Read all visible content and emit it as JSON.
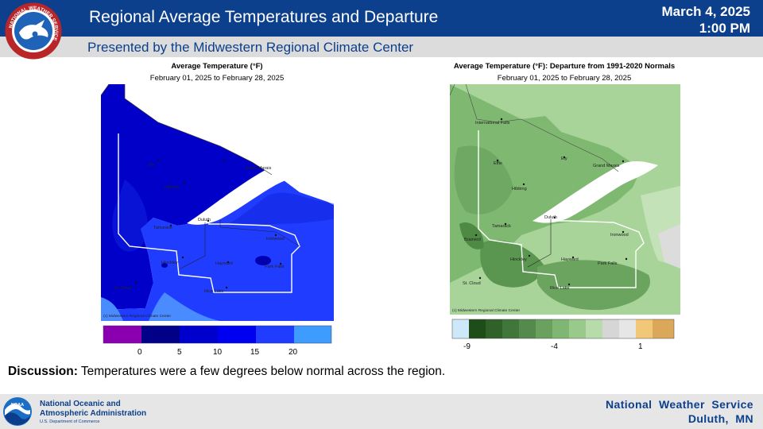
{
  "header": {
    "title": "Regional Average Temperatures and Departure",
    "subtitle": "Presented by the Midwestern Regional Climate Center",
    "date": "March 4, 2025",
    "time": "1:00 PM",
    "logo_icon": "nws-logo",
    "logo_text": "NATIONAL WEATHER SERVICE"
  },
  "colors": {
    "header_blue": "#0c3f8c",
    "temp_dark": "#0000c8",
    "temp_mid": "#1f3cff",
    "temp_light": "#4a8cff",
    "dep_dark_green": "#6fa863",
    "dep_light_green": "#a8d49a"
  },
  "left_map": {
    "title": "Average Temperature (°F)",
    "date_range": "February 01, 2025 to February 28, 2025",
    "credit": "(c) Midwestern Regional Climate Center",
    "labels": [
      "Ely",
      "Grand Marais",
      "Hibbing",
      "Duluth",
      "Tamarack",
      "Ironwood",
      "Hinckley",
      "Hayward",
      "Park Falls",
      "St. Cloud",
      "Rice Lake"
    ],
    "legend_ticks": [
      "0",
      "5",
      "10",
      "15",
      "20"
    ]
  },
  "right_map": {
    "title": "Average Temperature (°F): Departure from 1991-2020 Normals",
    "date_range": "February 01, 2025 to February 28, 2025",
    "credit": "(c) Midwestern Regional Climate Center",
    "labels": [
      "International Falls",
      "Effie",
      "Ely",
      "Grand Marais",
      "Hibbing",
      "Duluth",
      "Tamarack",
      "Brainerd",
      "Ironwood",
      "Hinckley",
      "Hayward",
      "Park Falls",
      "St. Cloud",
      "Rice Lake"
    ],
    "legend_ticks": [
      "-9",
      "-4",
      "1"
    ]
  },
  "discussion": {
    "label": "Discussion:",
    "text": " Temperatures were a few degrees below normal across the region."
  },
  "footer": {
    "logo_icon": "noaa-logo",
    "logo_text": "NOAA",
    "org_line1": "National Oceanic and",
    "org_line2": "Atmospheric Administration",
    "dept": "U.S. Department of Commerce",
    "office_line1": "National  Weather  Service",
    "office_line2": "Duluth,  MN"
  }
}
